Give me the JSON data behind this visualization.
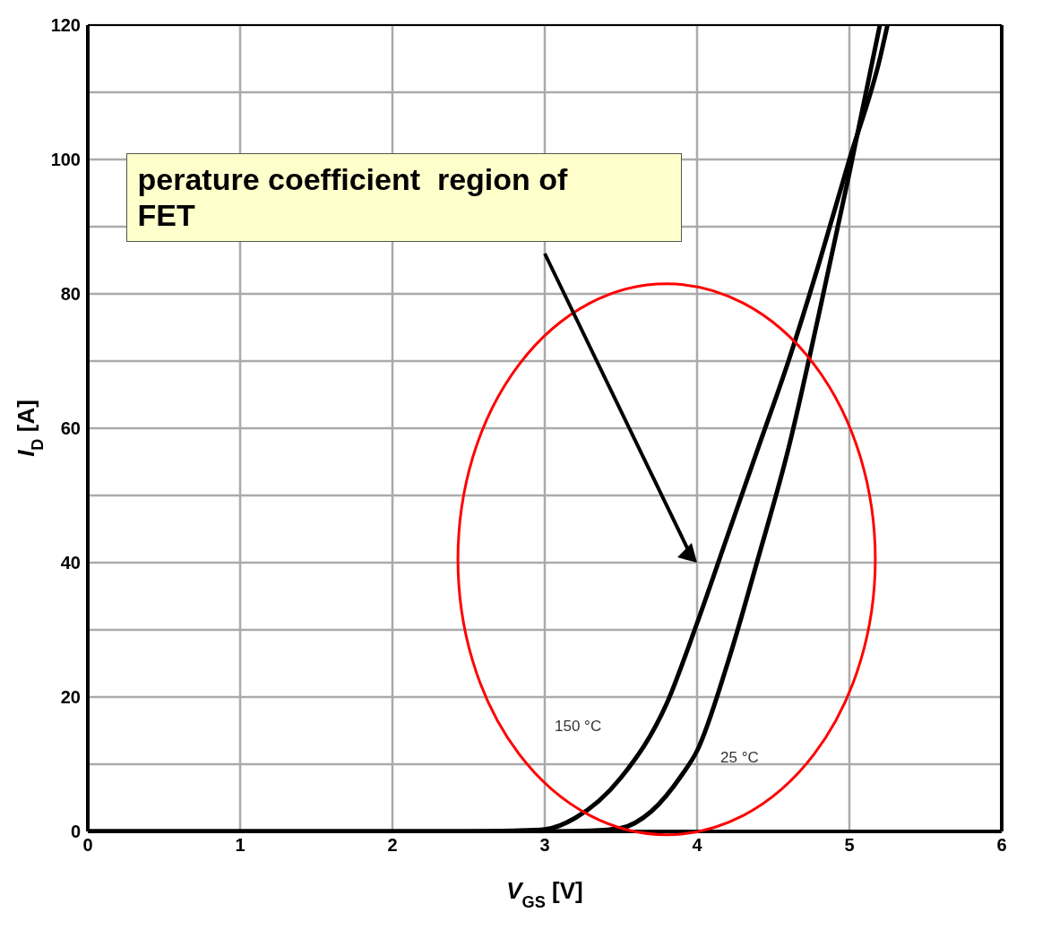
{
  "chart_data": {
    "type": "line",
    "xlabel": "V$_{GS}$ [V]",
    "ylabel": "I$_{D}$ [A]",
    "annotations": [
      "perature coefficient  region of\nFET"
    ],
    "xlim": [
      0,
      6
    ],
    "xticks": [
      0,
      1,
      2,
      3,
      4,
      5,
      6
    ],
    "ylim": [
      0,
      120
    ],
    "yticks": [
      0,
      {
        "value": 10,
        "label": null
      },
      20,
      {
        "value": 30,
        "label": null
      },
      40,
      {
        "value": 50,
        "label": null
      },
      60,
      {
        "value": 70,
        "label": null
      },
      80,
      {
        "value": 90,
        "label": null
      },
      100,
      {
        "value": 110,
        "label": null
      },
      120
    ],
    "grid": true,
    "legend": false,
    "marker": "none",
    "line_style": "solid",
    "series": [
      {
        "name": "150 °C",
        "color": "#000000",
        "x": [
          0,
          2.5,
          2.8,
          3.0,
          3.2,
          3.5,
          3.8,
          4.0,
          4.2,
          4.4,
          4.6,
          4.8,
          5.0,
          5.2,
          5.25
        ],
        "values": [
          0,
          0,
          0.1,
          0.3,
          2,
          8,
          19,
          31,
          44,
          57,
          70,
          84.5,
          100,
          115,
          120
        ]
      },
      {
        "name": "25 °C",
        "color": "#000000",
        "x": [
          0,
          3.0,
          3.3,
          3.5,
          3.7,
          3.9,
          4.0,
          4.2,
          4.4,
          4.6,
          4.8,
          5.0,
          5.1,
          5.2
        ],
        "values": [
          0,
          0,
          0.1,
          0.5,
          3,
          8.4,
          12,
          25,
          40.6,
          57,
          77,
          98,
          109,
          120
        ]
      }
    ]
  }
}
